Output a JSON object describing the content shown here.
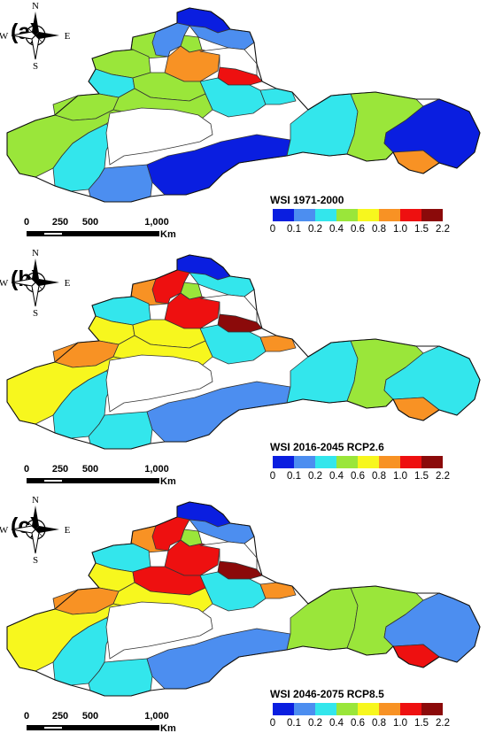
{
  "colors": {
    "c0": "#0a1ee0",
    "c1": "#4c8ef0",
    "c2": "#33e6ec",
    "c3": "#9ae63a",
    "c4": "#f7f71e",
    "c5": "#f89224",
    "c6": "#ee1010",
    "c7": "#8b0a0a",
    "none": "#ffffff",
    "border": "#333333"
  },
  "legend": {
    "ticks": [
      "0",
      "0.1",
      "0.2",
      "0.4",
      "0.6",
      "0.8",
      "1.0",
      "1.5",
      "2.2"
    ]
  },
  "compass": {
    "n": "N",
    "s": "S",
    "e": "E",
    "w": "W"
  },
  "scale": {
    "ticks": [
      "0",
      "250",
      "500",
      "1,000"
    ],
    "unit": "Km"
  },
  "panels": [
    {
      "label": "(a)",
      "title": "WSI 1971-2000",
      "regions": {
        "north_top": "c0",
        "north_mid": "c1",
        "ne_small": "c3",
        "altay_w": "c3",
        "upper_l": "c3",
        "tacheng": "c1",
        "bortala": "c2",
        "center_n": "c5",
        "hotspot": "c6",
        "white_n": "none",
        "mid_r": "c2",
        "turpan": "c2",
        "west_top": "c3",
        "west_far": "c3",
        "west_mid": "c3",
        "west_bot": "c3",
        "sw_small": "c2",
        "south_lo": "c1",
        "south_band": "c0",
        "east1": "c2",
        "east2": "c3",
        "east3": "c0",
        "east_south": "c5"
      }
    },
    {
      "label": "(b)",
      "title": "WSI 2016-2045 RCP2.6",
      "regions": {
        "north_top": "c0",
        "north_mid": "c2",
        "ne_small": "c3",
        "altay_w": "c5",
        "upper_l": "c2",
        "tacheng": "c6",
        "bortala": "c4",
        "center_n": "c6",
        "hotspot": "c7",
        "white_n": "none",
        "mid_r": "c2",
        "turpan": "c5",
        "west_top": "c4",
        "west_far": "c5",
        "west_mid": "c4",
        "west_bot": "c4",
        "sw_small": "c2",
        "south_lo": "c2",
        "south_band": "c1",
        "east1": "c2",
        "east2": "c3",
        "east3": "c2",
        "east_south": "c5"
      }
    },
    {
      "label": "(c)",
      "title": "WSI 2046-2075 RCP8.5",
      "regions": {
        "north_top": "c0",
        "north_mid": "c1",
        "ne_small": "c3",
        "altay_w": "c5",
        "upper_l": "c2",
        "tacheng": "c6",
        "bortala": "c4",
        "center_n": "c6",
        "hotspot": "c7",
        "white_n": "none",
        "mid_r": "c2",
        "turpan": "c5",
        "west_top": "c6",
        "west_far": "c5",
        "west_mid": "c4",
        "west_bot": "c4",
        "sw_small": "c2",
        "south_lo": "c2",
        "south_band": "c1",
        "east1": "c3",
        "east2": "c3",
        "east3": "c1",
        "east_south": "c6"
      }
    }
  ]
}
